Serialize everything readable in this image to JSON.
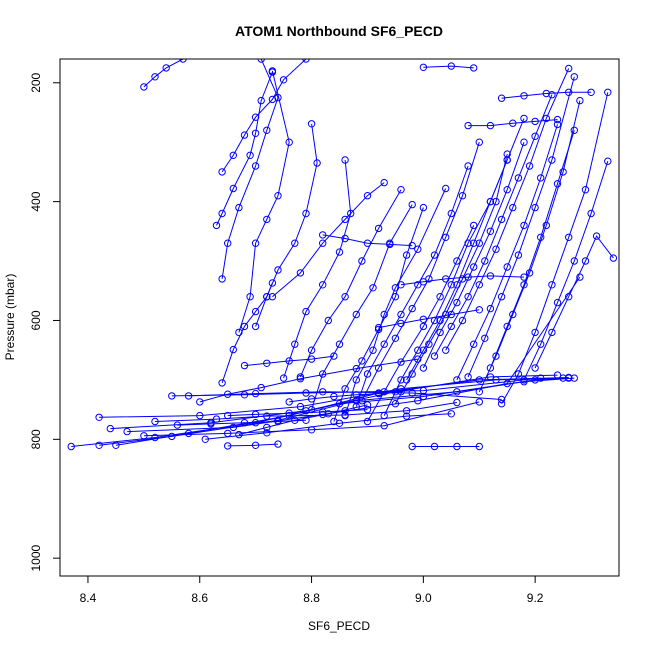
{
  "chart_data": {
    "type": "line",
    "title": "ATOM1 Northbound SF6_PECD",
    "xlabel": "SF6_PECD",
    "ylabel": "Pressure (mbar)",
    "xlim": [
      8.35,
      9.35
    ],
    "ylim": [
      1030,
      160
    ],
    "y_reversed": true,
    "x_ticks": [
      8.4,
      8.6,
      8.8,
      9.0,
      9.2
    ],
    "x_tick_labels": [
      "8.4",
      "8.6",
      "8.8",
      "9.0",
      "9.2"
    ],
    "y_ticks": [
      200,
      400,
      600,
      800,
      1000
    ],
    "y_tick_labels": [
      "200",
      "400",
      "600",
      "800",
      "1000"
    ],
    "grid": false,
    "legend": "none",
    "series_color": "#0000ff",
    "series": [
      {
        "x": [
          8.37,
          8.52,
          8.7,
          8.85,
          9.0,
          9.2,
          9.26
        ],
        "y": [
          812,
          797,
          772,
          740,
          728,
          700,
          697
        ]
      },
      {
        "x": [
          8.42,
          8.55,
          8.74,
          8.88,
          9.06,
          9.18,
          9.27
        ],
        "y": [
          810,
          795,
          768,
          735,
          720,
          703,
          697
        ]
      },
      {
        "x": [
          8.45,
          8.58,
          8.76,
          8.92,
          9.1,
          9.26
        ],
        "y": [
          810,
          790,
          760,
          722,
          700,
          696
        ]
      },
      {
        "x": [
          8.44,
          8.62,
          8.79,
          8.95,
          9.12,
          9.24
        ],
        "y": [
          782,
          772,
          752,
          720,
          695,
          692
        ]
      },
      {
        "x": [
          8.42,
          8.6,
          8.78,
          8.96,
          9.13,
          9.25
        ],
        "y": [
          763,
          760,
          745,
          715,
          700,
          697
        ]
      },
      {
        "x": [
          8.47,
          8.66,
          8.82,
          8.99,
          9.15,
          9.28
        ],
        "y": [
          787,
          780,
          758,
          735,
          706,
          527
        ]
      },
      {
        "x": [
          8.55,
          8.68,
          8.79,
          9.0,
          9.21
        ],
        "y": [
          727,
          725,
          722,
          718,
          697
        ]
      },
      {
        "x": [
          8.5,
          8.65,
          8.8,
          8.93,
          9.1
        ],
        "y": [
          794,
          790,
          784,
          777,
          737
        ]
      },
      {
        "x": [
          8.52,
          8.63,
          8.72,
          8.86,
          8.97,
          9.06
        ],
        "y": [
          770,
          766,
          761,
          759,
          752,
          738
        ]
      },
      {
        "x": [
          8.58,
          8.7,
          8.82,
          8.98,
          9.14
        ],
        "y": [
          727,
          723,
          720,
          722,
          733
        ]
      },
      {
        "x": [
          8.61,
          8.72,
          8.85,
          8.97,
          9.05
        ],
        "y": [
          800,
          789,
          773,
          761,
          757
        ]
      },
      {
        "x": [
          8.67,
          8.72,
          8.77,
          8.83,
          8.9
        ],
        "y": [
          792,
          780,
          768,
          757,
          742
        ]
      },
      {
        "x": [
          8.6,
          8.65,
          8.71,
          8.78,
          8.88,
          8.99
        ],
        "y": [
          737,
          724,
          713,
          698,
          681,
          665
        ]
      },
      {
        "x": [
          8.64,
          8.66,
          8.68,
          8.7,
          8.72,
          8.73
        ],
        "y": [
          705,
          649,
          610,
          585,
          560,
          537
        ]
      },
      {
        "x": [
          8.67,
          8.69,
          8.7,
          8.72,
          8.74,
          8.76,
          8.73
        ],
        "y": [
          620,
          560,
          470,
          430,
          390,
          300,
          180
        ]
      },
      {
        "x": [
          8.64,
          8.65,
          8.67,
          8.7,
          8.72,
          8.74,
          8.71
        ],
        "y": [
          530,
          470,
          410,
          340,
          280,
          225,
          160
        ]
      },
      {
        "x": [
          8.63,
          8.64,
          8.66,
          8.69,
          8.7,
          8.71,
          8.73
        ],
        "y": [
          440,
          420,
          378,
          322,
          285,
          230,
          182
        ]
      },
      {
        "x": [
          8.5,
          8.52,
          8.54,
          8.57
        ],
        "y": [
          207,
          190,
          175,
          160
        ]
      },
      {
        "x": [
          8.64,
          8.66,
          8.68,
          8.7,
          8.73,
          8.75,
          8.79
        ],
        "y": [
          350,
          322,
          288,
          258,
          228,
          195,
          160
        ]
      },
      {
        "x": [
          8.7,
          8.72,
          8.74,
          8.77,
          8.79,
          8.81,
          8.8
        ],
        "y": [
          610,
          560,
          515,
          470,
          420,
          335,
          269
        ]
      },
      {
        "x": [
          8.75,
          8.77,
          8.79,
          8.82,
          8.85,
          8.87,
          8.86
        ],
        "y": [
          697,
          640,
          585,
          540,
          485,
          420,
          330
        ]
      },
      {
        "x": [
          8.73,
          8.78,
          8.82,
          8.86,
          8.9,
          8.93
        ],
        "y": [
          560,
          520,
          470,
          430,
          390,
          368
        ]
      },
      {
        "x": [
          8.78,
          8.8,
          8.83,
          8.86,
          8.89,
          8.92,
          8.96
        ],
        "y": [
          695,
          650,
          600,
          560,
          500,
          445,
          380
        ]
      },
      {
        "x": [
          8.8,
          8.82,
          8.85,
          8.88,
          8.91,
          8.94,
          8.98
        ],
        "y": [
          750,
          690,
          640,
          590,
          545,
          470,
          405
        ]
      },
      {
        "x": [
          8.84,
          8.86,
          8.89,
          8.92,
          8.95,
          8.97,
          9.0
        ],
        "y": [
          770,
          715,
          668,
          615,
          560,
          490,
          410
        ]
      },
      {
        "x": [
          8.86,
          8.88,
          8.91,
          8.93,
          8.95,
          8.99,
          9.04
        ],
        "y": [
          760,
          700,
          650,
          590,
          545,
          480,
          378
        ]
      },
      {
        "x": [
          8.88,
          8.9,
          8.93,
          8.96,
          8.99,
          9.02,
          9.05,
          9.08
        ],
        "y": [
          745,
          690,
          640,
          590,
          540,
          490,
          420,
          340
        ]
      },
      {
        "x": [
          8.89,
          8.92,
          8.95,
          8.98,
          9.01,
          9.04,
          9.07,
          9.1
        ],
        "y": [
          735,
          680,
          630,
          580,
          530,
          460,
          390,
          300
        ]
      },
      {
        "x": [
          8.9,
          8.93,
          8.96,
          9.0,
          9.03,
          9.06,
          9.09
        ],
        "y": [
          770,
          720,
          670,
          610,
          560,
          500,
          440
        ]
      },
      {
        "x": [
          8.93,
          8.96,
          8.99,
          9.02,
          9.05,
          9.08,
          9.12,
          9.15
        ],
        "y": [
          760,
          700,
          650,
          600,
          540,
          470,
          400,
          330
        ]
      },
      {
        "x": [
          8.95,
          8.98,
          9.01,
          9.04,
          9.07,
          9.1,
          9.13,
          9.15
        ],
        "y": [
          740,
          690,
          640,
          590,
          530,
          470,
          400,
          320
        ]
      },
      {
        "x": [
          8.97,
          9.0,
          9.03,
          9.06,
          9.09,
          9.12,
          9.15,
          9.18
        ],
        "y": [
          700,
          650,
          600,
          540,
          470,
          400,
          330,
          260
        ]
      },
      {
        "x": [
          9.0,
          9.03,
          9.06,
          9.09,
          9.12,
          9.15,
          9.18
        ],
        "y": [
          680,
          620,
          570,
          510,
          450,
          380,
          300
        ]
      },
      {
        "x": [
          9.02,
          9.05,
          9.08,
          9.11,
          9.14,
          9.17,
          9.2,
          9.23
        ],
        "y": [
          660,
          610,
          560,
          500,
          430,
          360,
          290,
          220
        ]
      },
      {
        "x": [
          9.04,
          9.07,
          9.1,
          9.13,
          9.16,
          9.19,
          9.22,
          9.26
        ],
        "y": [
          650,
          600,
          540,
          480,
          410,
          340,
          260,
          176
        ]
      },
      {
        "x": [
          9.06,
          9.09,
          9.12,
          9.15,
          9.18,
          9.21,
          9.24
        ],
        "y": [
          700,
          640,
          580,
          510,
          440,
          360,
          270
        ]
      },
      {
        "x": [
          9.08,
          9.11,
          9.14,
          9.17,
          9.2,
          9.23,
          9.27
        ],
        "y": [
          695,
          630,
          560,
          490,
          410,
          330,
          190
        ]
      },
      {
        "x": [
          9.1,
          9.13,
          9.16,
          9.19,
          9.22,
          9.25,
          9.28
        ],
        "y": [
          720,
          660,
          590,
          520,
          440,
          350,
          230
        ]
      },
      {
        "x": [
          9.12,
          9.15,
          9.18,
          9.21,
          9.24,
          9.27
        ],
        "y": [
          680,
          610,
          540,
          460,
          370,
          280
        ]
      },
      {
        "x": [
          9.14,
          9.17,
          9.2,
          9.23,
          9.26,
          9.29,
          9.33
        ],
        "y": [
          740,
          690,
          620,
          540,
          460,
          380,
          216
        ]
      },
      {
        "x": [
          9.18,
          9.21,
          9.24,
          9.27,
          9.3,
          9.33
        ],
        "y": [
          700,
          640,
          570,
          500,
          420,
          332
        ]
      },
      {
        "x": [
          9.2,
          9.23,
          9.26,
          9.29,
          9.31,
          9.34
        ],
        "y": [
          680,
          620,
          560,
          500,
          458,
          495
        ]
      },
      {
        "x": [
          9.14,
          9.18,
          9.22,
          9.26,
          9.3
        ],
        "y": [
          226,
          222,
          218,
          216,
          216
        ]
      },
      {
        "x": [
          9.08,
          9.12,
          9.16,
          9.2,
          9.24
        ],
        "y": [
          272,
          272,
          268,
          265,
          262
        ]
      },
      {
        "x": [
          8.92,
          8.96,
          9.0,
          9.05,
          9.1
        ],
        "y": [
          612,
          605,
          598,
          590,
          582
        ]
      },
      {
        "x": [
          8.82,
          8.86,
          8.9,
          8.94,
          8.98
        ],
        "y": [
          456,
          462,
          470,
          472,
          474
        ]
      },
      {
        "x": [
          8.96,
          9.0,
          9.04,
          9.08,
          9.12,
          9.18
        ],
        "y": [
          540,
          535,
          530,
          527,
          525,
          527
        ]
      },
      {
        "x": [
          8.76,
          8.8,
          8.84,
          8.88,
          8.92,
          8.96
        ],
        "y": [
          737,
          732,
          728,
          725,
          723,
          720
        ]
      },
      {
        "x": [
          8.65,
          8.7,
          8.76,
          8.82,
          8.86,
          8.9
        ],
        "y": [
          760,
          758,
          756,
          754,
          752,
          750
        ]
      },
      {
        "x": [
          8.68,
          8.72,
          8.76,
          8.8,
          8.84
        ],
        "y": [
          676,
          672,
          668,
          665,
          660
        ]
      },
      {
        "x": [
          8.56,
          8.62,
          8.68,
          8.74,
          8.79
        ],
        "y": [
          776,
          774,
          772,
          770,
          768
        ]
      },
      {
        "x": [
          8.98,
          9.02,
          9.06,
          9.1
        ],
        "y": [
          812,
          812,
          812,
          812
        ]
      },
      {
        "x": [
          8.65,
          8.7,
          8.74
        ],
        "y": [
          811,
          810,
          808
        ]
      },
      {
        "x": [
          9.0,
          9.05,
          9.09
        ],
        "y": [
          174,
          172,
          175
        ]
      }
    ]
  }
}
